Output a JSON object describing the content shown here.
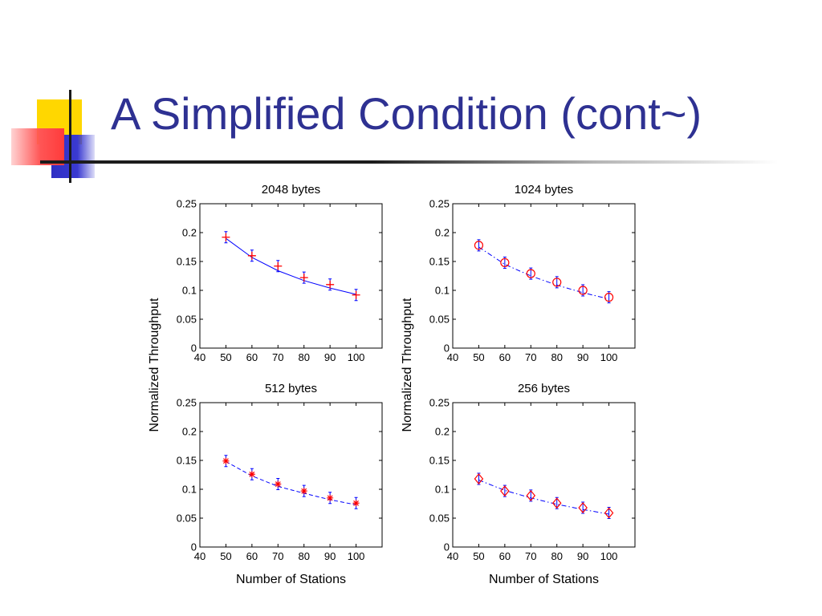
{
  "slide": {
    "title": "A Simplified Condition (cont~)"
  },
  "colors": {
    "title": "#2e3192",
    "curve": "#0000ff",
    "marker": "#ff0000",
    "errorbar": "#0000ff",
    "deco_yellow": "#ffd700",
    "deco_red": "#ff4d4d",
    "deco_blue": "#3333cc"
  },
  "chart_data": [
    {
      "type": "scatter",
      "title": "2048 bytes",
      "xlabel": "",
      "ylabel": "Normalized Throughput",
      "xlim": [
        40,
        110
      ],
      "ylim": [
        0,
        0.25
      ],
      "xticks": [
        40,
        50,
        60,
        70,
        80,
        90,
        100
      ],
      "yticks": [
        0,
        0.05,
        0.1,
        0.15,
        0.2,
        0.25
      ],
      "marker": "plus",
      "line_style": "solid",
      "points": {
        "x": [
          50,
          60,
          70,
          80,
          90,
          100
        ],
        "y": [
          0.192,
          0.16,
          0.142,
          0.122,
          0.11,
          0.092
        ]
      },
      "fit": {
        "x": [
          50,
          60,
          70,
          80,
          90,
          100
        ],
        "y": [
          0.19,
          0.157,
          0.134,
          0.117,
          0.104,
          0.093
        ]
      }
    },
    {
      "type": "scatter",
      "title": "1024 bytes",
      "xlabel": "",
      "ylabel": "Normalized Throughput",
      "xlim": [
        40,
        110
      ],
      "ylim": [
        0,
        0.25
      ],
      "xticks": [
        40,
        50,
        60,
        70,
        80,
        90,
        100
      ],
      "yticks": [
        0,
        0.05,
        0.1,
        0.15,
        0.2,
        0.25
      ],
      "marker": "circle",
      "line_style": "dashdot",
      "points": {
        "x": [
          50,
          60,
          70,
          80,
          90,
          100
        ],
        "y": [
          0.178,
          0.148,
          0.129,
          0.114,
          0.1,
          0.088
        ]
      },
      "fit": {
        "x": [
          50,
          60,
          70,
          80,
          90,
          100
        ],
        "y": [
          0.175,
          0.145,
          0.125,
          0.109,
          0.096,
          0.085
        ]
      }
    },
    {
      "type": "scatter",
      "title": "512 bytes",
      "xlabel": "Number of Stations",
      "ylabel": "",
      "xlim": [
        40,
        110
      ],
      "ylim": [
        0,
        0.25
      ],
      "xticks": [
        40,
        50,
        60,
        70,
        80,
        90,
        100
      ],
      "yticks": [
        0,
        0.05,
        0.1,
        0.15,
        0.2,
        0.25
      ],
      "marker": "star",
      "line_style": "dashed",
      "points": {
        "x": [
          50,
          60,
          70,
          80,
          90,
          100
        ],
        "y": [
          0.149,
          0.126,
          0.109,
          0.097,
          0.085,
          0.076
        ]
      },
      "fit": {
        "x": [
          50,
          60,
          70,
          80,
          90,
          100
        ],
        "y": [
          0.148,
          0.123,
          0.105,
          0.093,
          0.082,
          0.073
        ]
      }
    },
    {
      "type": "scatter",
      "title": "256 bytes",
      "xlabel": "Number of Stations",
      "ylabel": "",
      "xlim": [
        40,
        110
      ],
      "ylim": [
        0,
        0.25
      ],
      "xticks": [
        40,
        50,
        60,
        70,
        80,
        90,
        100
      ],
      "yticks": [
        0,
        0.05,
        0.1,
        0.15,
        0.2,
        0.25
      ],
      "marker": "diamond",
      "line_style": "dashdot",
      "points": {
        "x": [
          50,
          60,
          70,
          80,
          90,
          100
        ],
        "y": [
          0.118,
          0.097,
          0.089,
          0.076,
          0.068,
          0.059
        ]
      },
      "fit": {
        "x": [
          50,
          60,
          70,
          80,
          90,
          100
        ],
        "y": [
          0.116,
          0.098,
          0.085,
          0.074,
          0.065,
          0.057
        ]
      }
    }
  ]
}
